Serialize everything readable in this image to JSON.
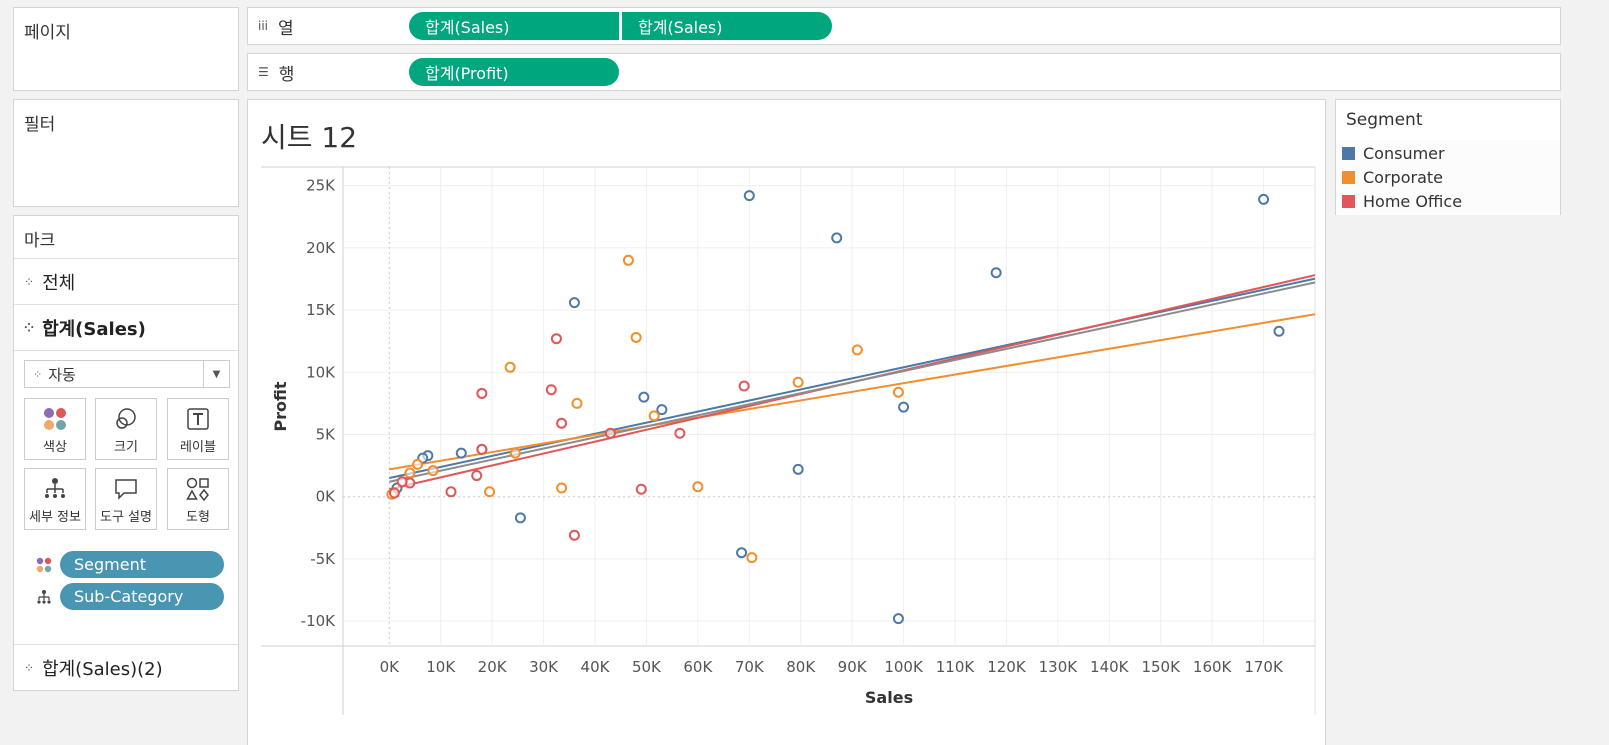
{
  "pages": {
    "label": "페이지"
  },
  "filters": {
    "label": "필터"
  },
  "columns_shelf": {
    "label": "열",
    "pills": [
      "합계(Sales)",
      "합계(Sales)"
    ]
  },
  "rows_shelf": {
    "label": "행",
    "pills": [
      "합계(Profit)"
    ]
  },
  "marks": {
    "title": "마크",
    "all_label": "전체",
    "layer1_label": "합계(Sales)",
    "layer2_label": "합계(Sales)(2)",
    "mark_type": "자동",
    "buttons": {
      "color": "색상",
      "size": "크기",
      "label": "레이블",
      "detail": "세부 정보",
      "tooltip": "도구 설명",
      "shape": "도형"
    },
    "fields": [
      "Segment",
      "Sub-Category"
    ]
  },
  "sheet": {
    "title": "시트 12"
  },
  "legend": {
    "title": "Segment",
    "items": [
      {
        "name": "Consumer",
        "color": "#4e79a7"
      },
      {
        "name": "Corporate",
        "color": "#f28e2b"
      },
      {
        "name": "Home Office",
        "color": "#e15759"
      }
    ]
  },
  "chart_data": {
    "type": "scatter",
    "xlabel": "Sales",
    "ylabel": "Profit",
    "xlim": [
      -9000,
      180000
    ],
    "ylim": [
      -12000,
      26500
    ],
    "x_ticks": [
      "0K",
      "10K",
      "20K",
      "30K",
      "40K",
      "50K",
      "60K",
      "70K",
      "80K",
      "90K",
      "100K",
      "110K",
      "120K",
      "130K",
      "140K",
      "150K",
      "160K",
      "170K"
    ],
    "y_ticks": [
      "-10K",
      "-5K",
      "0K",
      "5K",
      "10K",
      "15K",
      "20K",
      "25K"
    ],
    "series": [
      {
        "name": "Consumer",
        "color": "#4e79a7",
        "points": [
          [
            70000,
            24200
          ],
          [
            87000,
            20800
          ],
          [
            170000,
            23900
          ],
          [
            36000,
            15600
          ],
          [
            118000,
            18000
          ],
          [
            173000,
            13300
          ],
          [
            49500,
            8000
          ],
          [
            53000,
            7000
          ],
          [
            100000,
            7200
          ],
          [
            14000,
            3500
          ],
          [
            18000,
            3800
          ],
          [
            7500,
            3300
          ],
          [
            6500,
            3100
          ],
          [
            79500,
            2200
          ],
          [
            25500,
            -1700
          ],
          [
            68500,
            -4500
          ],
          [
            99000,
            -9800
          ],
          [
            1500,
            700
          ]
        ]
      },
      {
        "name": "Corporate",
        "color": "#f28e2b",
        "points": [
          [
            46500,
            19000
          ],
          [
            48000,
            12800
          ],
          [
            23500,
            10400
          ],
          [
            91000,
            11800
          ],
          [
            36500,
            7500
          ],
          [
            79500,
            9200
          ],
          [
            99000,
            8400
          ],
          [
            51500,
            6500
          ],
          [
            24500,
            3500
          ],
          [
            8500,
            2100
          ],
          [
            19500,
            400
          ],
          [
            33500,
            700
          ],
          [
            60000,
            800
          ],
          [
            70500,
            -4900
          ],
          [
            4000,
            1900
          ],
          [
            5500,
            2600
          ],
          [
            500,
            200
          ]
        ]
      },
      {
        "name": "Home Office",
        "color": "#e15759",
        "points": [
          [
            32500,
            12700
          ],
          [
            31500,
            8600
          ],
          [
            18000,
            8300
          ],
          [
            69000,
            8900
          ],
          [
            33500,
            5900
          ],
          [
            43000,
            5100
          ],
          [
            56500,
            5100
          ],
          [
            18000,
            3800
          ],
          [
            17000,
            1700
          ],
          [
            12000,
            400
          ],
          [
            49000,
            600
          ],
          [
            36000,
            -3100
          ],
          [
            4000,
            1100
          ],
          [
            2500,
            1200
          ],
          [
            1000,
            300
          ]
        ]
      }
    ],
    "trend_lines": [
      {
        "name": "Consumer",
        "color": "#4e79a7",
        "x0": 0,
        "y0": 1500,
        "x1": 182000,
        "y1": 17700
      },
      {
        "name": "Corporate",
        "color": "#f28e2b",
        "x0": 0,
        "y0": 2200,
        "x1": 182000,
        "y1": 14800
      },
      {
        "name": "Home Office",
        "color": "#e15759",
        "x0": 0,
        "y0": 600,
        "x1": 182000,
        "y1": 18000
      },
      {
        "name": "Overall",
        "color": "#8c8c8c",
        "x0": 0,
        "y0": 1200,
        "x1": 182000,
        "y1": 17400
      }
    ]
  }
}
